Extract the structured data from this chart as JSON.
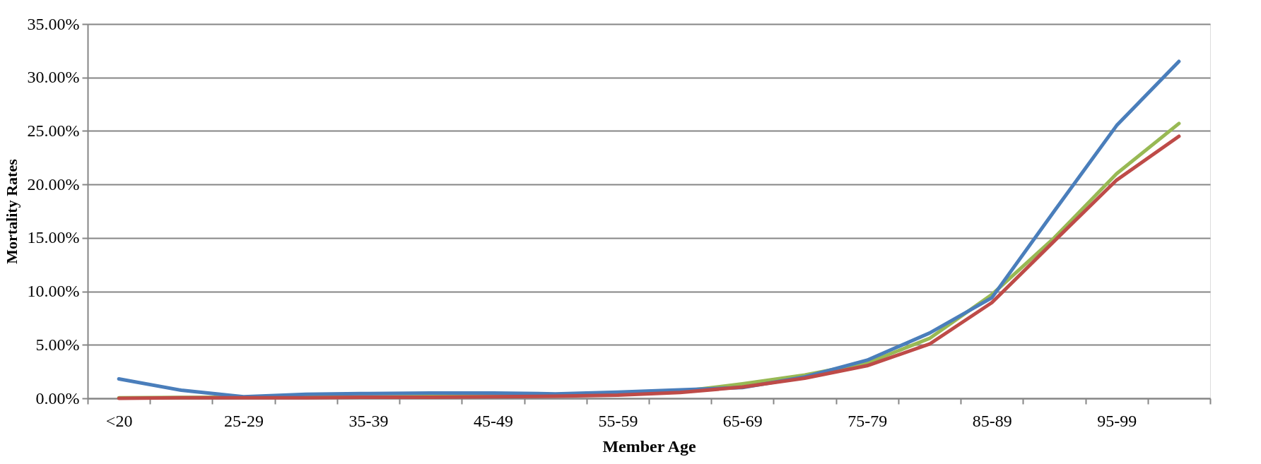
{
  "chart_data": {
    "type": "line",
    "xlabel": "Member Age",
    "ylabel": "Mortality Rates",
    "categories": [
      "<20",
      null,
      "25-29",
      null,
      "35-39",
      null,
      "45-49",
      null,
      "55-59",
      null,
      "65-69",
      null,
      "75-79",
      null,
      "85-89",
      null,
      "95-99",
      null
    ],
    "series": [
      {
        "color": "#98b954",
        "values": [
          0.05,
          0.08,
          0.1,
          0.12,
          0.15,
          0.17,
          0.2,
          0.25,
          0.4,
          0.65,
          1.35,
          2.18,
          3.3,
          5.6,
          9.7,
          15.0,
          21.0,
          25.7
        ]
      },
      {
        "color": "#4a7ebb",
        "values": [
          1.82,
          0.76,
          0.15,
          0.38,
          0.45,
          0.5,
          0.5,
          0.42,
          0.57,
          0.79,
          1.0,
          2.0,
          3.57,
          6.1,
          9.4,
          17.5,
          25.5,
          31.5
        ]
      },
      {
        "color": "#be4b48",
        "values": [
          0.0,
          0.05,
          0.05,
          0.05,
          0.1,
          0.1,
          0.15,
          0.2,
          0.3,
          0.55,
          1.05,
          1.88,
          3.05,
          5.07,
          8.95,
          14.7,
          20.4,
          24.5
        ]
      }
    ],
    "ylim": [
      0,
      35
    ],
    "yticks": [
      {
        "value": 0,
        "label": "0.00%"
      },
      {
        "value": 5,
        "label": "5.00%"
      },
      {
        "value": 10,
        "label": "10.00%"
      },
      {
        "value": 15,
        "label": "15.00%"
      },
      {
        "value": 20,
        "label": "20.00%"
      },
      {
        "value": 25,
        "label": "25.00%"
      },
      {
        "value": 30,
        "label": "30.00%"
      },
      {
        "value": 35,
        "label": "35.00%"
      }
    ],
    "grid": "y",
    "legend": false,
    "marker": "none",
    "line_style": "solid"
  }
}
